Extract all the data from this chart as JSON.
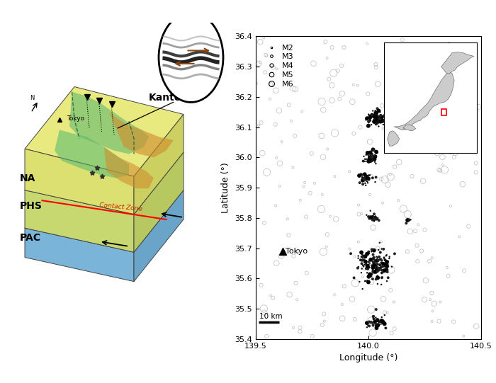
{
  "fig_width": 7.0,
  "fig_height": 5.41,
  "fig_dpi": 100,
  "bg_color": "#ffffff",
  "right_panel": {
    "xlim": [
      139.5,
      140.5
    ],
    "ylim": [
      35.4,
      36.4
    ],
    "xlabel": "Longitude (°)",
    "ylabel": "Latitude (°)",
    "xticks": [
      139.5,
      140.0,
      140.5
    ],
    "yticks": [
      35.4,
      35.5,
      35.6,
      35.7,
      35.8,
      35.9,
      36.0,
      36.1,
      36.2,
      36.3,
      36.4
    ],
    "tokyo_lon": 139.62,
    "tokyo_lat": 35.69,
    "scale_bar_lon1": 139.515,
    "scale_bar_lon2": 139.605,
    "scale_bar_lat": 35.455,
    "scale_bar_label": "10 km",
    "legend_sizes": [
      3,
      7,
      14,
      22,
      32
    ],
    "legend_labels": [
      "M2",
      "M3",
      "M4",
      "M5",
      "M6"
    ]
  }
}
